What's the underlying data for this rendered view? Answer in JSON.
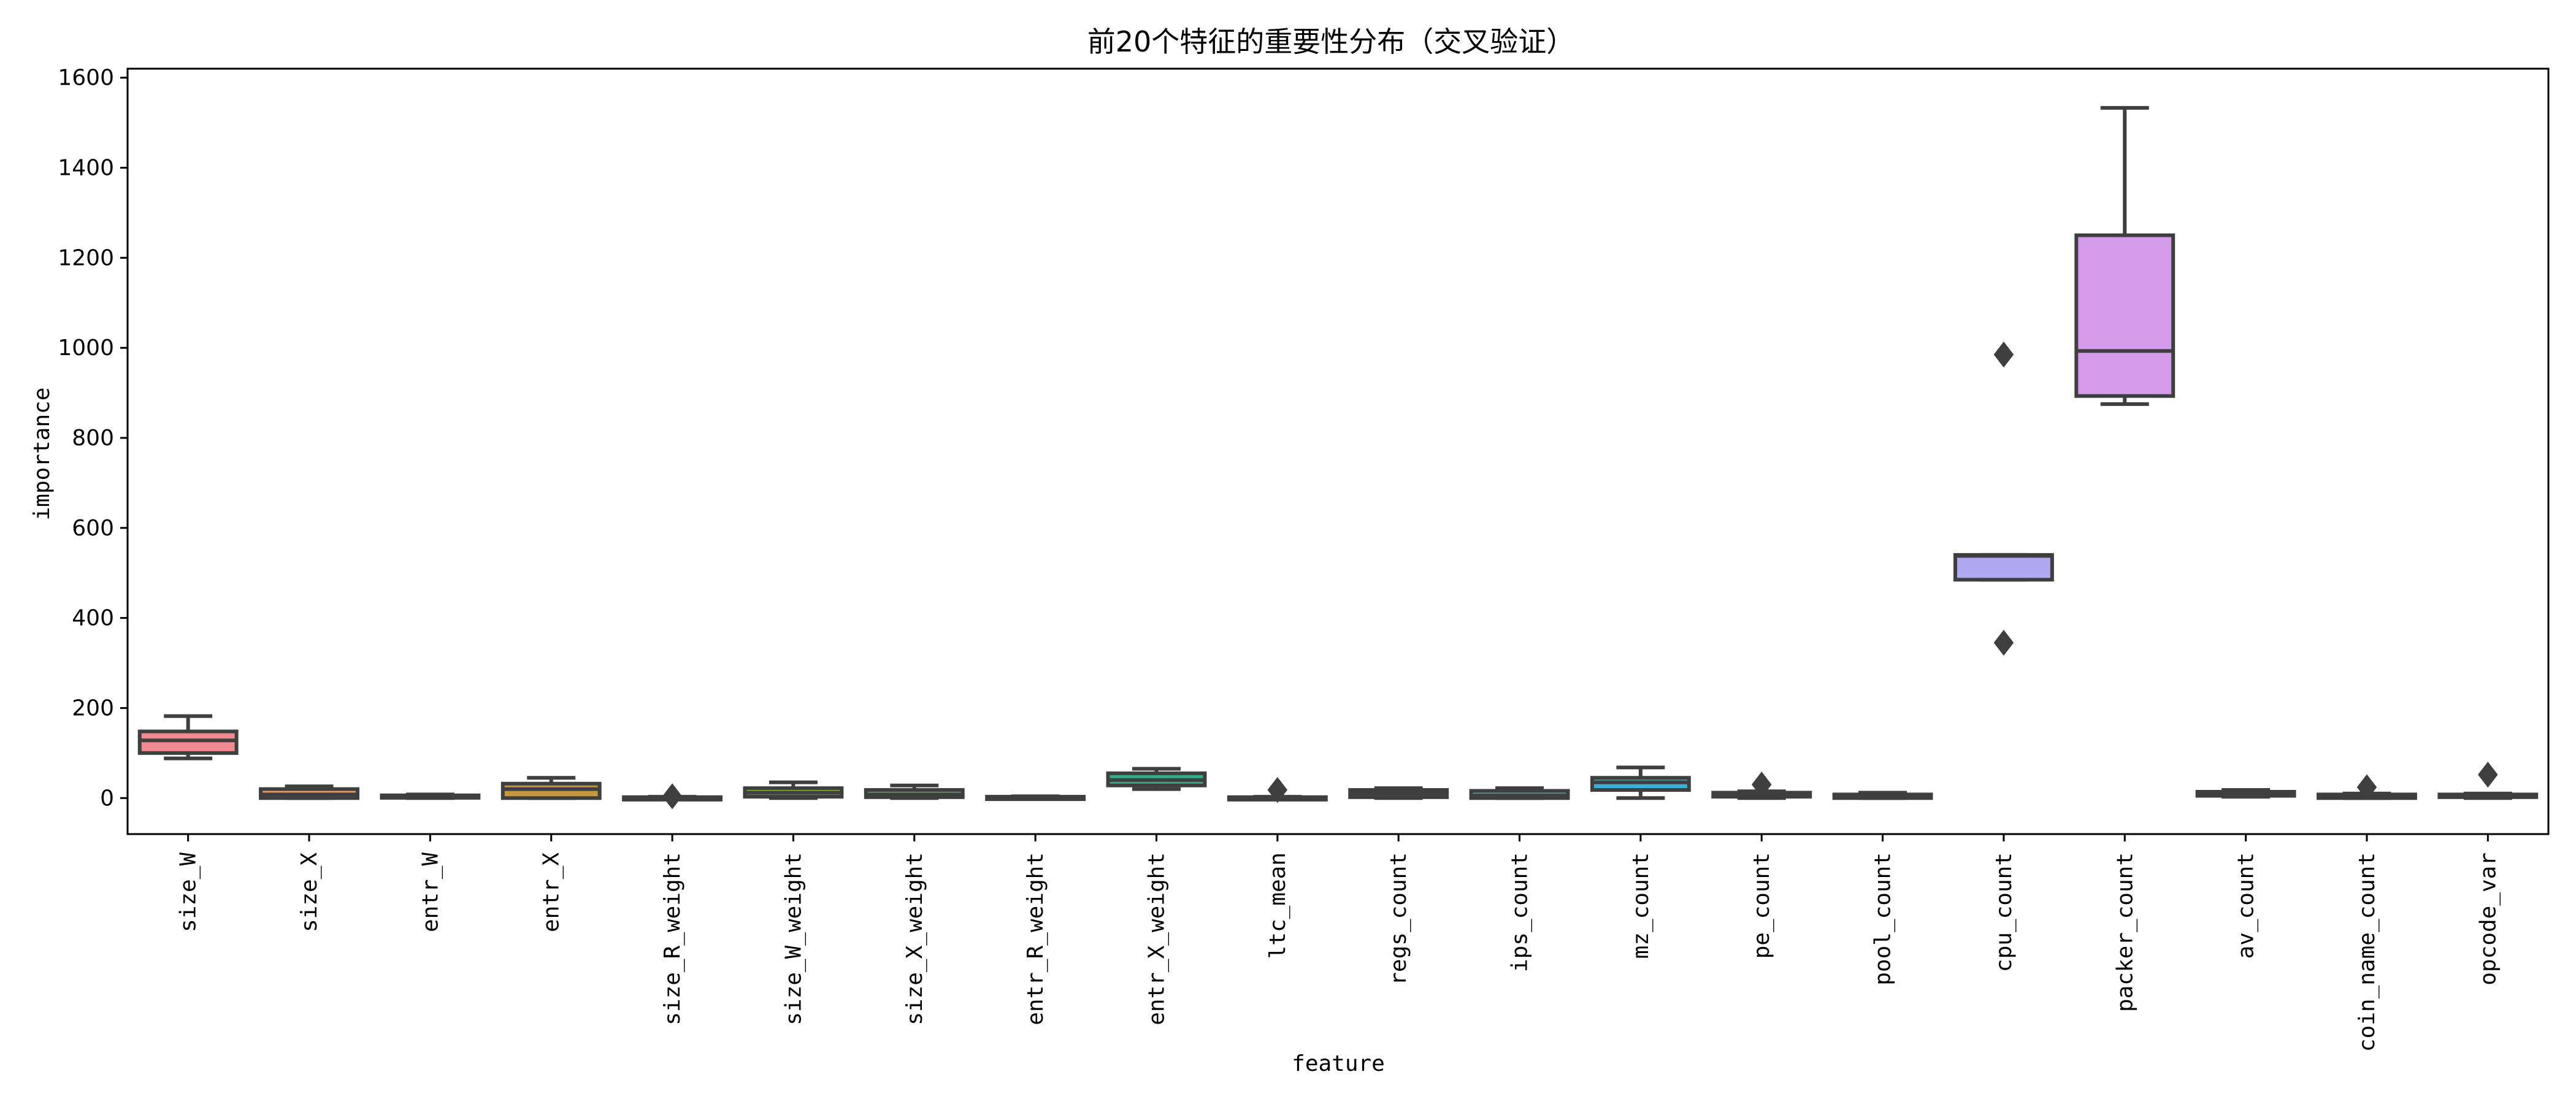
{
  "chart_data": {
    "type": "box",
    "title": "前20个特征的重要性分布（交叉验证）",
    "xlabel": "feature",
    "ylabel": "importance",
    "ylim": [
      -80,
      1620
    ],
    "yticks": [
      0,
      200,
      400,
      600,
      800,
      1000,
      1200,
      1400,
      1600
    ],
    "grid": false,
    "categories": [
      "size_W",
      "size_X",
      "entr_W",
      "entr_X",
      "size_R_weight",
      "size_W_weight",
      "size_X_weight",
      "entr_R_weight",
      "entr_X_weight",
      "ltc_mean",
      "regs_count",
      "ips_count",
      "mz_count",
      "pe_count",
      "pool_count",
      "cpu_count",
      "packer_count",
      "av_count",
      "coin_name_count",
      "opcode_var"
    ],
    "colors": [
      "#f08a90",
      "#ea9b63",
      "#c8ab3e",
      "#c39b3a",
      "#a8b13e",
      "#8ab83a",
      "#52bb54",
      "#3bb88d",
      "#36a98a",
      "#3ab1a0",
      "#3bb4b4",
      "#3cb6c4",
      "#3ab0d8",
      "#7aaaf0",
      "#9db0f5",
      "#b0a8f0",
      "#d39bea",
      "#e290dc",
      "#ec8cc8",
      "#f08aa8"
    ],
    "boxes": [
      {
        "min": 88,
        "q1": 100,
        "median": 128,
        "q3": 148,
        "max": 182,
        "outliers": []
      },
      {
        "min": 0,
        "q1": 0,
        "median": 8,
        "q3": 20,
        "max": 26,
        "outliers": []
      },
      {
        "min": 0,
        "q1": 2,
        "median": 4,
        "q3": 6,
        "max": 8,
        "outliers": []
      },
      {
        "min": 0,
        "q1": 0,
        "median": 20,
        "q3": 32,
        "max": 45,
        "outliers": []
      },
      {
        "min": 0,
        "q1": 0,
        "median": 1,
        "q3": 2,
        "max": 3,
        "outliers": [
          4
        ]
      },
      {
        "min": 0,
        "q1": 3,
        "median": 12,
        "q3": 22,
        "max": 35,
        "outliers": []
      },
      {
        "min": 0,
        "q1": 2,
        "median": 8,
        "q3": 18,
        "max": 28,
        "outliers": []
      },
      {
        "min": 0,
        "q1": 0,
        "median": 1,
        "q3": 3,
        "max": 4,
        "outliers": []
      },
      {
        "min": 20,
        "q1": 28,
        "median": 40,
        "q3": 55,
        "max": 65,
        "outliers": []
      },
      {
        "min": 0,
        "q1": 0,
        "median": 1,
        "q3": 2,
        "max": 3,
        "outliers": [
          18
        ]
      },
      {
        "min": 0,
        "q1": 2,
        "median": 10,
        "q3": 18,
        "max": 22,
        "outliers": []
      },
      {
        "min": 0,
        "q1": 0,
        "median": 6,
        "q3": 16,
        "max": 22,
        "outliers": []
      },
      {
        "min": 0,
        "q1": 18,
        "median": 35,
        "q3": 45,
        "max": 68,
        "outliers": []
      },
      {
        "min": 0,
        "q1": 3,
        "median": 6,
        "q3": 12,
        "max": 15,
        "outliers": [
          30
        ]
      },
      {
        "min": 0,
        "q1": 0,
        "median": 4,
        "q3": 8,
        "max": 12,
        "outliers": []
      },
      {
        "min": 485,
        "q1": 485,
        "median": 538,
        "q3": 540,
        "max": 540,
        "outliers": [
          985,
          345
        ]
      },
      {
        "min": 875,
        "q1": 893,
        "median": 993,
        "q3": 1250,
        "max": 1533,
        "outliers": []
      },
      {
        "min": 3,
        "q1": 5,
        "median": 10,
        "q3": 14,
        "max": 18,
        "outliers": []
      },
      {
        "min": 0,
        "q1": 0,
        "median": 2,
        "q3": 8,
        "max": 10,
        "outliers": [
          24
        ]
      },
      {
        "min": 0,
        "q1": 2,
        "median": 4,
        "q3": 8,
        "max": 10,
        "outliers": [
          52
        ]
      }
    ]
  }
}
